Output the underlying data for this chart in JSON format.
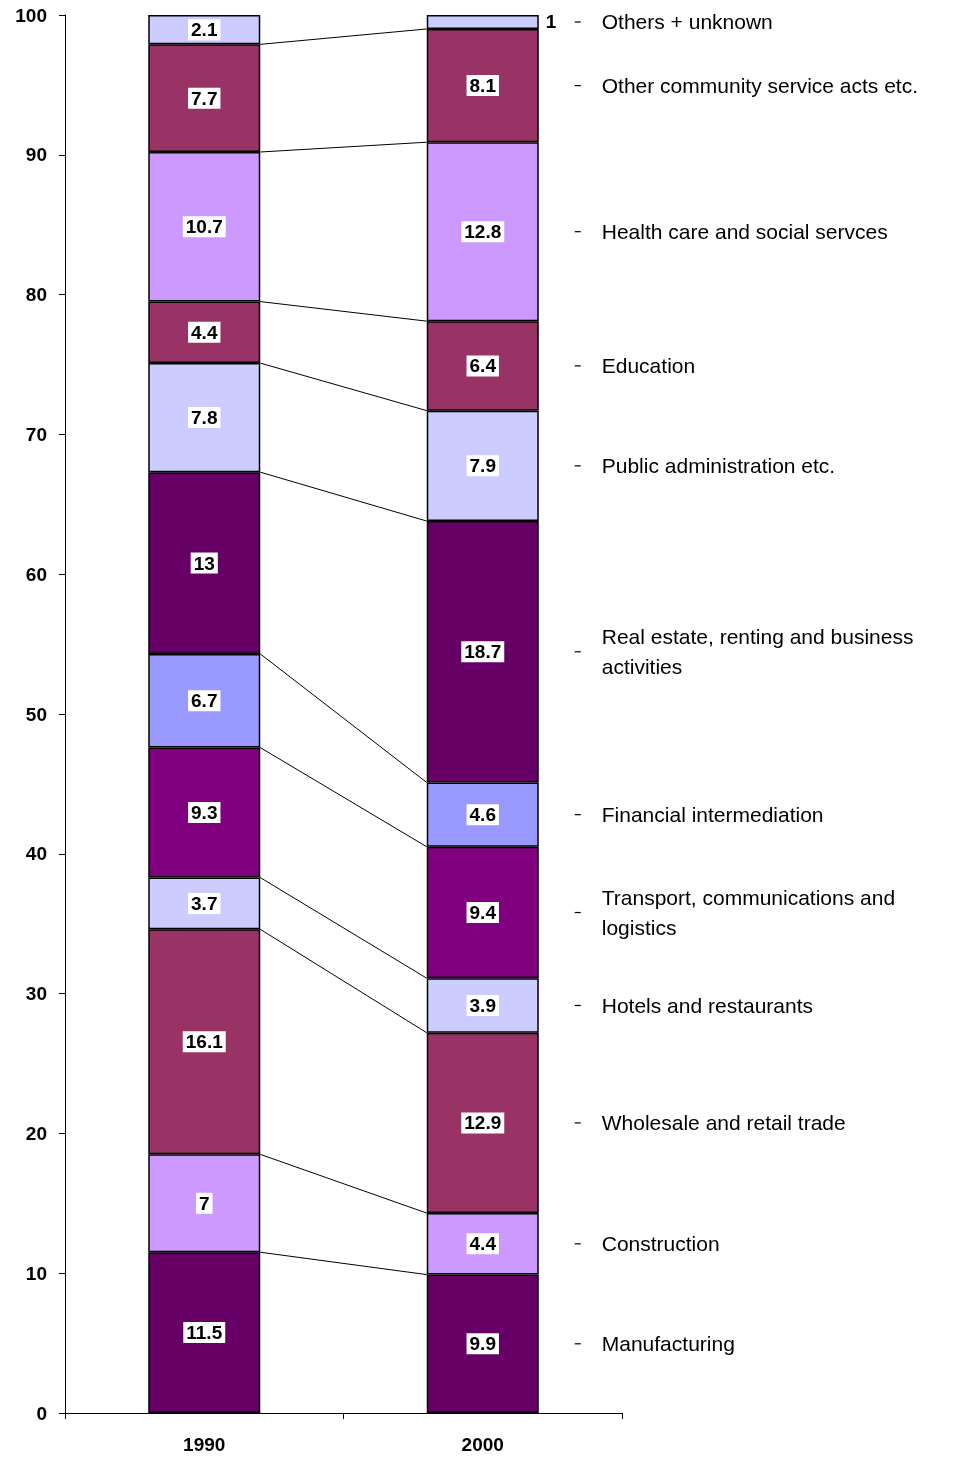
{
  "chart_data": {
    "type": "bar",
    "stacked": true,
    "data_labels": true,
    "grid": false,
    "legend": "right",
    "categories": [
      "1990",
      "2000"
    ],
    "ylim": [
      0,
      100
    ],
    "yticks": [
      0,
      10,
      20,
      30,
      40,
      50,
      60,
      70,
      80,
      90,
      100
    ],
    "series": [
      {
        "name": "Manufacturing",
        "color": "#660066",
        "values": [
          11.5,
          9.9
        ]
      },
      {
        "name": "Construction",
        "color": "#cc99ff",
        "values": [
          7,
          4.4
        ]
      },
      {
        "name": "Wholesale and retail trade",
        "color": "#993366",
        "values": [
          16.1,
          12.9
        ]
      },
      {
        "name": "Hotels and restaurants",
        "color": "#ccccff",
        "values": [
          3.7,
          3.9
        ]
      },
      {
        "name": "Transport, communications and logistics",
        "color": "#800080",
        "values": [
          9.3,
          9.4
        ]
      },
      {
        "name": "Financial intermediation",
        "color": "#9999ff",
        "values": [
          6.7,
          4.6
        ]
      },
      {
        "name": "Real estate, renting and business activities",
        "color": "#660066",
        "values": [
          13,
          18.7
        ]
      },
      {
        "name": "Public administration etc.",
        "color": "#ccccff",
        "values": [
          7.8,
          7.9
        ]
      },
      {
        "name": "Education",
        "color": "#993366",
        "values": [
          4.4,
          6.4
        ]
      },
      {
        "name": "Health care and social servces",
        "color": "#cc99ff",
        "values": [
          10.7,
          12.8
        ]
      },
      {
        "name": "Other community service acts etc.",
        "color": "#993366",
        "values": [
          7.7,
          8.1
        ]
      },
      {
        "name": "Others + unknown",
        "color": "#ccccff",
        "values": [
          2.1,
          1
        ]
      }
    ]
  }
}
